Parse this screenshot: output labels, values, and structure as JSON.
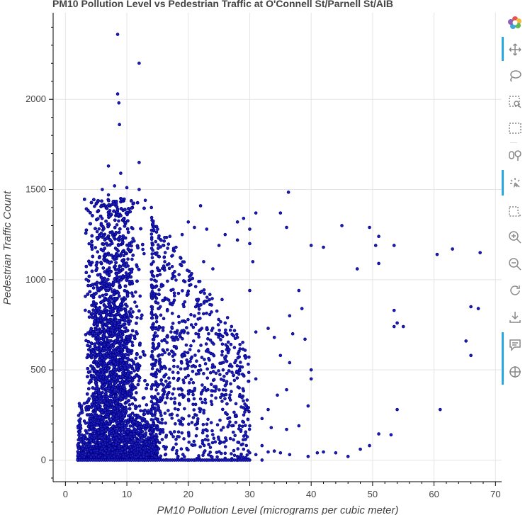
{
  "chart_data": {
    "type": "scatter",
    "title": "PM10 Pollution Level vs Pedestrian Traffic at O'Connell St/Parnell St/AIB",
    "xlabel": "PM10 Pollution Level (micrograms per cubic meter)",
    "ylabel": "Pedestrian Traffic Count",
    "xlim": [
      -2,
      71
    ],
    "ylim": [
      -120,
      2480
    ],
    "xticks": [
      0,
      10,
      20,
      30,
      40,
      50,
      60,
      70
    ],
    "yticks": [
      0,
      500,
      1000,
      1500,
      2000
    ],
    "grid": true,
    "marker_color": "#00008b",
    "marker_fill": "#1f1fb4",
    "series": [
      {
        "values": [
          [
            8.5,
            2360
          ],
          [
            12,
            2200
          ],
          [
            8.5,
            2030
          ],
          [
            8.7,
            1980
          ],
          [
            8.8,
            1860
          ],
          [
            12,
            1650
          ],
          [
            7,
            1630
          ],
          [
            9,
            1590
          ],
          [
            36.3,
            1485
          ],
          [
            45,
            1300
          ],
          [
            49.5,
            1290
          ],
          [
            51,
            1240
          ],
          [
            31,
            1370
          ],
          [
            35,
            1370
          ],
          [
            29,
            1340
          ],
          [
            28,
            1320
          ],
          [
            40,
            1190
          ],
          [
            50.5,
            1190
          ],
          [
            42,
            1180
          ],
          [
            53.5,
            1190
          ],
          [
            36,
            1290
          ],
          [
            30,
            1280
          ],
          [
            60.5,
            1140
          ],
          [
            63,
            1170
          ],
          [
            67.5,
            1150
          ],
          [
            47.5,
            1060
          ],
          [
            51,
            1090
          ],
          [
            38,
            940
          ],
          [
            38.5,
            840
          ],
          [
            36.5,
            800
          ],
          [
            37,
            700
          ],
          [
            34,
            680
          ],
          [
            33,
            730
          ],
          [
            31,
            710
          ],
          [
            30,
            940
          ],
          [
            35,
            580
          ],
          [
            36.5,
            540
          ],
          [
            39,
            670
          ],
          [
            40,
            500
          ],
          [
            40,
            450
          ],
          [
            39.5,
            300
          ],
          [
            36,
            390
          ],
          [
            34.5,
            360
          ],
          [
            33,
            280
          ],
          [
            32,
            230
          ],
          [
            33.5,
            180
          ],
          [
            36,
            170
          ],
          [
            38,
            190
          ],
          [
            53.5,
            830
          ],
          [
            54,
            760
          ],
          [
            55,
            740
          ],
          [
            53.5,
            740
          ],
          [
            66,
            850
          ],
          [
            67.2,
            840
          ],
          [
            65.2,
            660
          ],
          [
            66,
            580
          ],
          [
            61,
            280
          ],
          [
            54,
            280
          ],
          [
            51,
            145
          ],
          [
            53,
            140
          ],
          [
            49.5,
            80
          ],
          [
            48,
            60
          ],
          [
            46,
            20
          ],
          [
            44,
            40
          ],
          [
            42,
            45
          ],
          [
            41,
            40
          ],
          [
            39.5,
            20
          ],
          [
            36.5,
            30
          ],
          [
            35,
            40
          ],
          [
            34,
            50
          ],
          [
            33,
            45
          ],
          [
            32,
            80
          ],
          [
            31,
            30
          ],
          [
            30,
            40
          ],
          [
            29,
            60
          ],
          [
            28,
            20
          ],
          [
            27,
            35
          ],
          [
            26,
            10
          ],
          [
            25,
            0
          ],
          [
            24,
            0
          ],
          [
            23,
            0
          ],
          [
            22,
            0
          ],
          [
            21,
            0
          ],
          [
            20,
            0
          ],
          [
            27,
            0
          ],
          [
            28,
            0
          ],
          [
            30,
            0
          ],
          [
            32,
            0
          ],
          [
            30,
            190
          ],
          [
            29,
            470
          ],
          [
            31,
            450
          ],
          [
            26,
            560
          ],
          [
            27,
            380
          ],
          [
            29,
            210
          ],
          [
            25.5,
            890
          ],
          [
            26,
            760
          ],
          [
            28,
            680
          ],
          [
            30.5,
            1100
          ],
          [
            30,
            1200
          ],
          [
            28,
            1220
          ],
          [
            26,
            1250
          ],
          [
            25,
            1190
          ],
          [
            23,
            1280
          ],
          [
            22,
            1410
          ],
          [
            21,
            1290
          ],
          [
            22.5,
            1100
          ],
          [
            24,
            1060
          ],
          [
            22,
            930
          ],
          [
            21,
            800
          ],
          [
            20,
            1320
          ],
          [
            19,
            1250
          ],
          [
            18,
            1180
          ],
          [
            17,
            1240
          ],
          [
            16,
            1190
          ],
          [
            15,
            1280
          ],
          [
            14,
            1400
          ],
          [
            13,
            1440
          ],
          [
            12,
            1500
          ],
          [
            11,
            1420
          ],
          [
            10,
            1510
          ],
          [
            9,
            1450
          ],
          [
            8,
            1520
          ],
          [
            7,
            1470
          ],
          [
            6,
            1500
          ],
          [
            5,
            1420
          ],
          [
            4,
            1310
          ]
        ]
      }
    ]
  },
  "toolbar": {
    "items": [
      "bokeh-logo",
      "pan",
      "lasso-select",
      "zoom-to-box",
      "box-select",
      "hover",
      "tap",
      "poly-select",
      "zoom-in",
      "zoom-out",
      "reset",
      "save",
      "help",
      "crosshair"
    ]
  }
}
